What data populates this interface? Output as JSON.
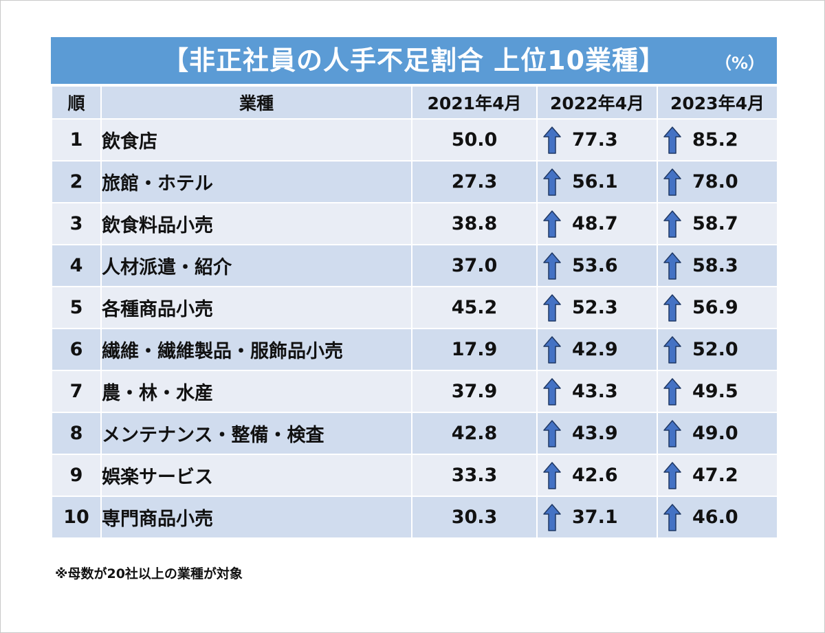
{
  "title": "【非正社員の人手不足割合 上位10業種】",
  "unit": "（%）",
  "footnote": "※母数が20社以上の業種が対象",
  "colors": {
    "title_bg": "#5b9bd5",
    "header_bg": "#d0dcee",
    "row_light": "#e9edf5",
    "row_dark": "#d0dcee",
    "arrow_fill": "#4472c4",
    "arrow_icon": "up-arrow-icon"
  },
  "chart_data": {
    "type": "table",
    "columns": [
      "順",
      "業種",
      "2021年4月",
      "2022年4月",
      "2023年4月"
    ],
    "rows": [
      {
        "rank": "1",
        "industry": "飲食店",
        "y2021": "50.0",
        "y2022": "77.3",
        "y2023": "85.2"
      },
      {
        "rank": "2",
        "industry": "旅館・ホテル",
        "y2021": "27.3",
        "y2022": "56.1",
        "y2023": "78.0"
      },
      {
        "rank": "3",
        "industry": "飲食料品小売",
        "y2021": "38.8",
        "y2022": "48.7",
        "y2023": "58.7"
      },
      {
        "rank": "4",
        "industry": "人材派遣・紹介",
        "y2021": "37.0",
        "y2022": "53.6",
        "y2023": "58.3"
      },
      {
        "rank": "5",
        "industry": "各種商品小売",
        "y2021": "45.2",
        "y2022": "52.3",
        "y2023": "56.9"
      },
      {
        "rank": "6",
        "industry": "繊維・繊維製品・服飾品小売",
        "y2021": "17.9",
        "y2022": "42.9",
        "y2023": "52.0"
      },
      {
        "rank": "7",
        "industry": "農・林・水産",
        "y2021": "37.9",
        "y2022": "43.3",
        "y2023": "49.5"
      },
      {
        "rank": "8",
        "industry": "メンテナンス・整備・検査",
        "y2021": "42.8",
        "y2022": "43.9",
        "y2023": "49.0"
      },
      {
        "rank": "9",
        "industry": "娯楽サービス",
        "y2021": "33.3",
        "y2022": "42.6",
        "y2023": "47.2"
      },
      {
        "rank": "10",
        "industry": "専門商品小売",
        "y2021": "30.3",
        "y2022": "37.1",
        "y2023": "46.0"
      }
    ]
  }
}
